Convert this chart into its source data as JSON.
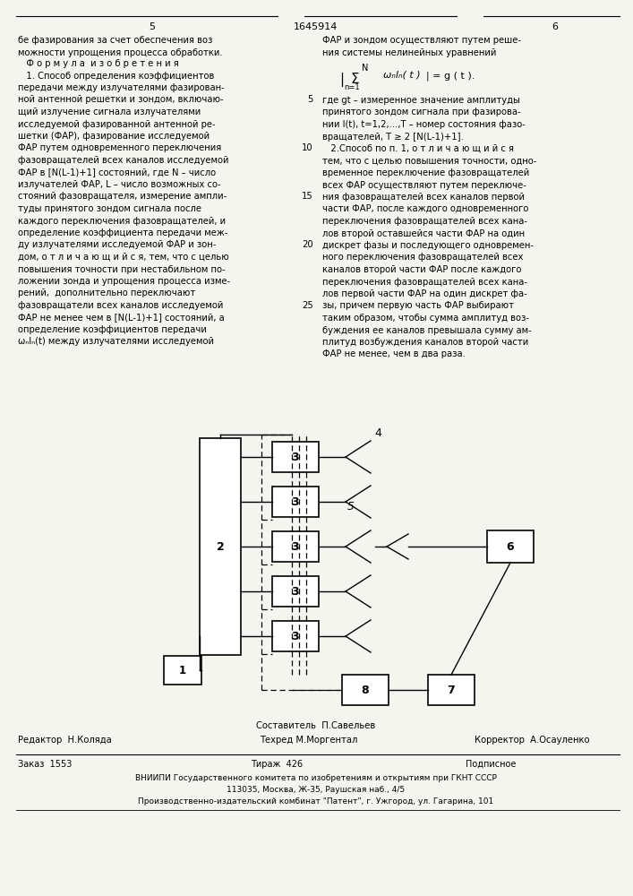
{
  "bg_color": "#f5f5f0",
  "page_number_left": "5",
  "page_number_center": "1645914",
  "page_number_right": "6",
  "top_left_lines": [
    "бе фазирования за счет обеспечения воз",
    "можности упрощения процесса обработки."
  ],
  "top_right_lines": [
    "ФАР и зондом осуществляют путем реше-",
    "ния системы нелинейных уравнений"
  ],
  "left_col_lines": [
    "   Ф о р м у л а  и з о б р е т е н и я",
    "   1. Способ определения коэффициентов",
    "передачи между излучателями фазирован-",
    "ной антенной решетки и зондом, включаю-",
    "щий излучение сигнала излучателями",
    "исследуемой фазированной антенной ре-",
    "шетки (ФАР), фазирование исследуемой",
    "ФАР путем одновременного переключения",
    "фазовращателей всех каналов исследуемой",
    "ФАР в [N(L-1)+1] состояний, где N – число",
    "излучателей ФАР, L – число возможных со-",
    "стояний фазовращателя, измерение ампли-",
    "туды принятого зондом сигнала после",
    "каждого переключения фазовращателей, и",
    "определение коэффициента передачи меж-",
    "ду излучателями исследуемой ФАР и зон-",
    "дом, о т л и ч а ю щ и й с я, тем, что с целью",
    "повышения точности при нестабильном по-",
    "ложении зонда и упрощения процесса изме-",
    "рений,  дополнительно переключают",
    "фазовращатели всех каналов исследуемой",
    "ФАР не менее чем в [N(L-1)+1] состояний, а",
    "определение коэффициентов передачи",
    "ωₙlₙ(t) между излучателями исследуемой"
  ],
  "right_col_lines": [
    "где gt – измеренное значение амплитуды",
    "принятого зондом сигнала при фазирова-",
    "нии I(t), t=1,2,...,T – номер состояния фазо-",
    "вращателей, T ≥ 2 [N(L-1)+1].",
    "   2.Способ по п. 1, о т л и ч а ю щ и й с я",
    "тем, что с целью повышения точности, одно-",
    "временное переключение фазовращателей",
    "всех ФАР осуществляют путем переключе-",
    "ния фазовращателей всех каналов первой",
    "части ФАР, после каждого одновременного",
    "переключения фазовращателей всех кана-",
    "лов второй оставшейся части ФАР на один",
    "дискрет фазы и последующего одновремен-",
    "ного переключения фазовращателей всех",
    "каналов второй части ФАР после каждого",
    "переключения фазовращателей всех кана-",
    "лов первой части ФАР на один дискрет фа-",
    "зы, причем первую часть ФАР выбирают",
    "таким образом, чтобы сумма амплитуд воз-",
    "буждения ее каналов превышала сумму ам-",
    "плитуд возбуждения каналов второй части",
    "ФАР не менее, чем в два раза."
  ],
  "line_numbers": [
    "5",
    "10",
    "15",
    "20",
    "25"
  ],
  "line_number_rows": [
    3,
    7,
    11,
    15,
    20
  ],
  "credits_compiler": "Составитель  П.Савельев",
  "credits_editor": "Редактор  Н.Коляда",
  "credits_techred": "Техред М.Моргентал",
  "credits_corrector": "Корректор  А.Осауленко",
  "footer_order": "Заказ  1553",
  "footer_circ": "Тираж  426",
  "footer_sub": "Подписное",
  "footer_org1": "ВНИИПИ Государственного комитета по изобретениям и открытиям при ГКНТ СССР",
  "footer_org2": "113035, Москва, Ж-35, Раушская наб., 4/5",
  "footer_prod": "Производственно-издательский комбинат \"Патент\", г. Ужгород, ул. Гагарина, 101"
}
